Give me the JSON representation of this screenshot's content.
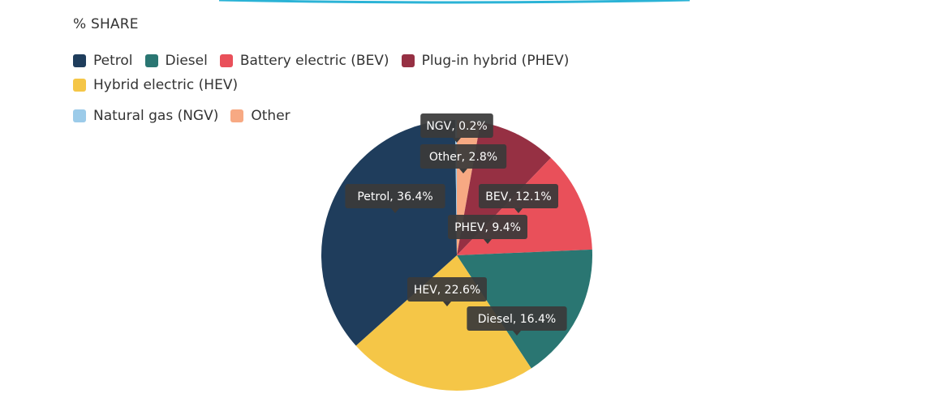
{
  "header": {
    "subtitle": "% SHARE"
  },
  "chart_data": {
    "type": "pie",
    "slices": [
      {
        "label": "Petrol",
        "short": "Petrol",
        "value": 36.4,
        "color": "#1f3d5c"
      },
      {
        "label": "Diesel",
        "short": "Diesel",
        "value": 16.4,
        "color": "#2a7672"
      },
      {
        "label": "Battery electric (BEV)",
        "short": "BEV",
        "value": 12.1,
        "color": "#e9505a"
      },
      {
        "label": "Plug-in hybrid (PHEV)",
        "short": "PHEV",
        "value": 9.4,
        "color": "#963043"
      },
      {
        "label": "Hybrid electric (HEV)",
        "short": "HEV",
        "value": 22.6,
        "color": "#f5c647"
      },
      {
        "label": "Natural gas (NGV)",
        "short": "NGV",
        "value": 0.2,
        "color": "#9ccbe9"
      },
      {
        "label": "Other",
        "short": "Other",
        "value": 2.8,
        "color": "#f7a983"
      }
    ],
    "legend_position": "top"
  }
}
